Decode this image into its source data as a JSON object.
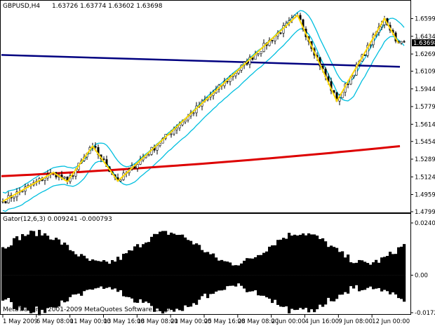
{
  "window": {
    "symbol_info": "GBPUSD,H4",
    "ohlc_readout": "1.63726 1.63774 1.63602 1.63698",
    "current_price": "1.63698",
    "copyright": "MetaTrader, ? 2001-2009 MetaQuotes Software Corp."
  },
  "indicator": {
    "title": "Gator(12,6,3) 0.009241 -0.000793",
    "scale_labels": [
      "0.02408",
      "0.00",
      "-0.01727"
    ],
    "colors": {
      "up": "#ff0000",
      "down": "#2f4f4f"
    }
  },
  "colors": {
    "background": "#ffffff",
    "candles": "#000000",
    "zigzag": "#ffd700",
    "envelope": "#00bfdf",
    "ma_blue": "#000080",
    "ma_red": "#dd0000",
    "price_tag_bg": "#000000",
    "price_tag_fg": "#ffffff"
  },
  "chart_data": [
    {
      "type": "line",
      "title": "",
      "price_labels": [
        "1.65990",
        "1.64340",
        "1.62690",
        "1.61090",
        "1.59440",
        "1.57790",
        "1.56140",
        "1.54540",
        "1.52890",
        "1.51240",
        "1.49590",
        "1.47990"
      ],
      "x_labels": [
        "1 May 2009",
        "6 May 08:00",
        "11 May 00:00",
        "13 May 16:00",
        "18 May 08:00",
        "21 May 00:00",
        "25 May 16:00",
        "28 May 08:00",
        "2 Jun 00:00",
        "4 Jun 16:00",
        "9 Jun 08:00",
        "12 Jun 00:00"
      ],
      "ylim": [
        1.4799,
        1.6694
      ],
      "zigzag": [
        {
          "bar": 0,
          "price": 1.4895
        },
        {
          "bar": 18,
          "price": 1.5165
        },
        {
          "bar": 23,
          "price": 1.508
        },
        {
          "bar": 32,
          "price": 1.541
        },
        {
          "bar": 41,
          "price": 1.5085
        },
        {
          "bar": 105,
          "price": 1.663
        },
        {
          "bar": 119,
          "price": 1.583
        },
        {
          "bar": 136,
          "price": 1.66
        },
        {
          "bar": 141,
          "price": 1.637
        }
      ],
      "ma_blue": {
        "start": 1.626,
        "end": 1.615
      },
      "ma_red": {
        "start": 1.513,
        "end": 1.541
      }
    },
    {
      "type": "bar",
      "title": "Gator(12,6,3)",
      "values_readout": [
        0.009241,
        -0.000793
      ],
      "ylim": [
        -0.01727,
        0.02408
      ]
    }
  ]
}
